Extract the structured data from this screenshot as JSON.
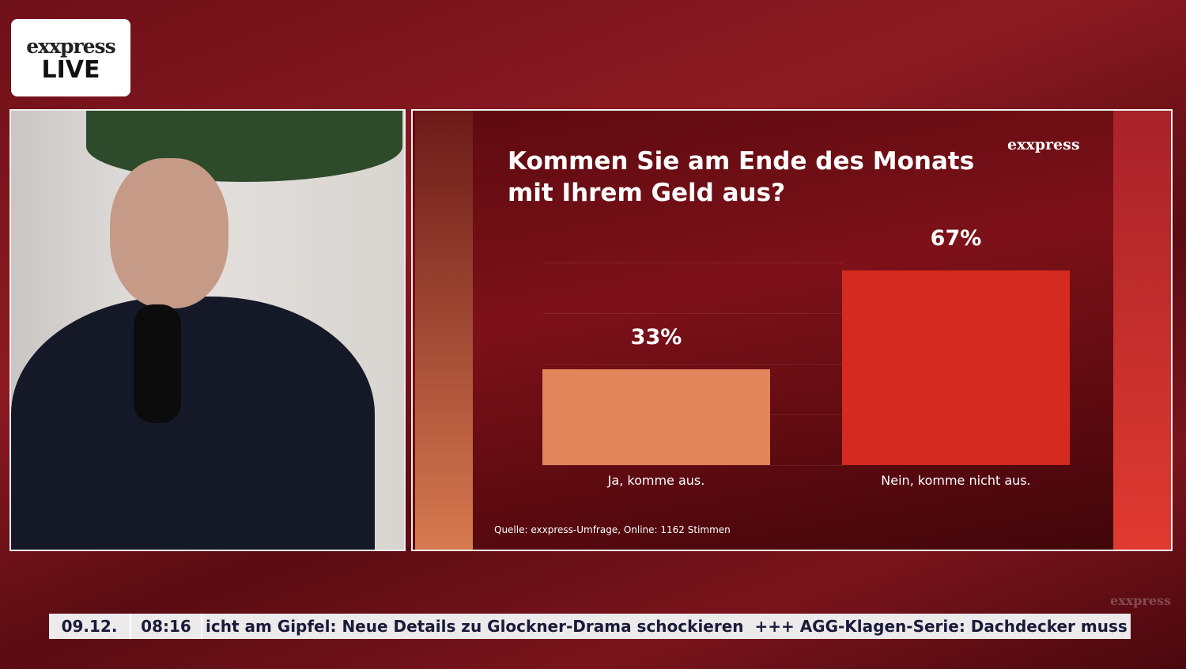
{
  "logo": {
    "brand": "exxpress",
    "live": "LIVE"
  },
  "chart_data": {
    "type": "bar",
    "title": "Kommen Sie am Ende des Monats mit Ihrem Geld aus?",
    "brand": "exxpress",
    "categories": [
      "Ja, komme aus.",
      "Nein, komme nicht aus."
    ],
    "values": [
      33,
      67
    ],
    "value_labels": [
      "33%",
      "67%"
    ],
    "colors": [
      "#e2855a",
      "#d52a1f"
    ],
    "source": "Quelle:  exxpress-Umfrage, Online: 1162 Stimmen"
  },
  "ticker": {
    "date": "09.12.",
    "time": "08:16",
    "text": "icht am Gipfel: Neue Details zu Glockner-Drama schockieren  +++ AGG-Klagen-Serie: Dachdecker muss na"
  },
  "watermark": "exxpress"
}
